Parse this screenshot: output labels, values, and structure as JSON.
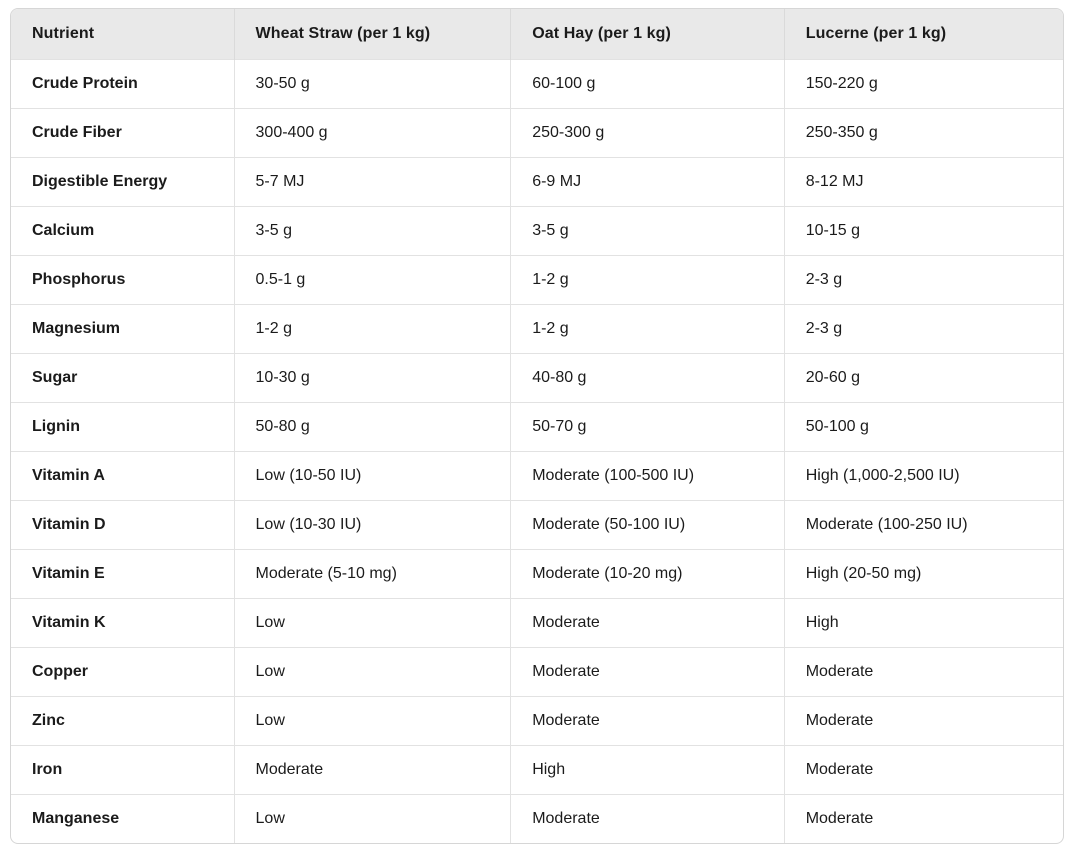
{
  "colors": {
    "page_bg": "#ffffff",
    "header_bg": "#e9e9e9",
    "outer_border": "#d6d6d6",
    "col_divider": "#dadada",
    "row_divider": "#e2e2e2",
    "text": "#1b1b1b"
  },
  "table": {
    "columns": [
      "Nutrient",
      "Wheat Straw (per 1 kg)",
      "Oat Hay (per 1 kg)",
      "Lucerne (per 1 kg)"
    ],
    "rows": [
      [
        "Crude Protein",
        "30-50 g",
        "60-100 g",
        "150-220 g"
      ],
      [
        "Crude Fiber",
        "300-400 g",
        "250-300 g",
        "250-350 g"
      ],
      [
        "Digestible Energy",
        "5-7 MJ",
        "6-9 MJ",
        "8-12 MJ"
      ],
      [
        "Calcium",
        "3-5 g",
        "3-5 g",
        "10-15 g"
      ],
      [
        "Phosphorus",
        "0.5-1 g",
        "1-2 g",
        "2-3 g"
      ],
      [
        "Magnesium",
        "1-2 g",
        "1-2 g",
        "2-3 g"
      ],
      [
        "Sugar",
        "10-30 g",
        "40-80 g",
        "20-60 g"
      ],
      [
        "Lignin",
        "50-80 g",
        "50-70 g",
        "50-100 g"
      ],
      [
        "Vitamin A",
        "Low (10-50 IU)",
        "Moderate (100-500 IU)",
        "High (1,000-2,500 IU)"
      ],
      [
        "Vitamin D",
        "Low (10-30 IU)",
        "Moderate (50-100 IU)",
        "Moderate (100-250 IU)"
      ],
      [
        "Vitamin E",
        "Moderate (5-10 mg)",
        "Moderate (10-20 mg)",
        "High (20-50 mg)"
      ],
      [
        "Vitamin K",
        "Low",
        "Moderate",
        "High"
      ],
      [
        "Copper",
        "Low",
        "Moderate",
        "Moderate"
      ],
      [
        "Zinc",
        "Low",
        "Moderate",
        "Moderate"
      ],
      [
        "Iron",
        "Moderate",
        "High",
        "Moderate"
      ],
      [
        "Manganese",
        "Low",
        "Moderate",
        "Moderate"
      ]
    ]
  }
}
